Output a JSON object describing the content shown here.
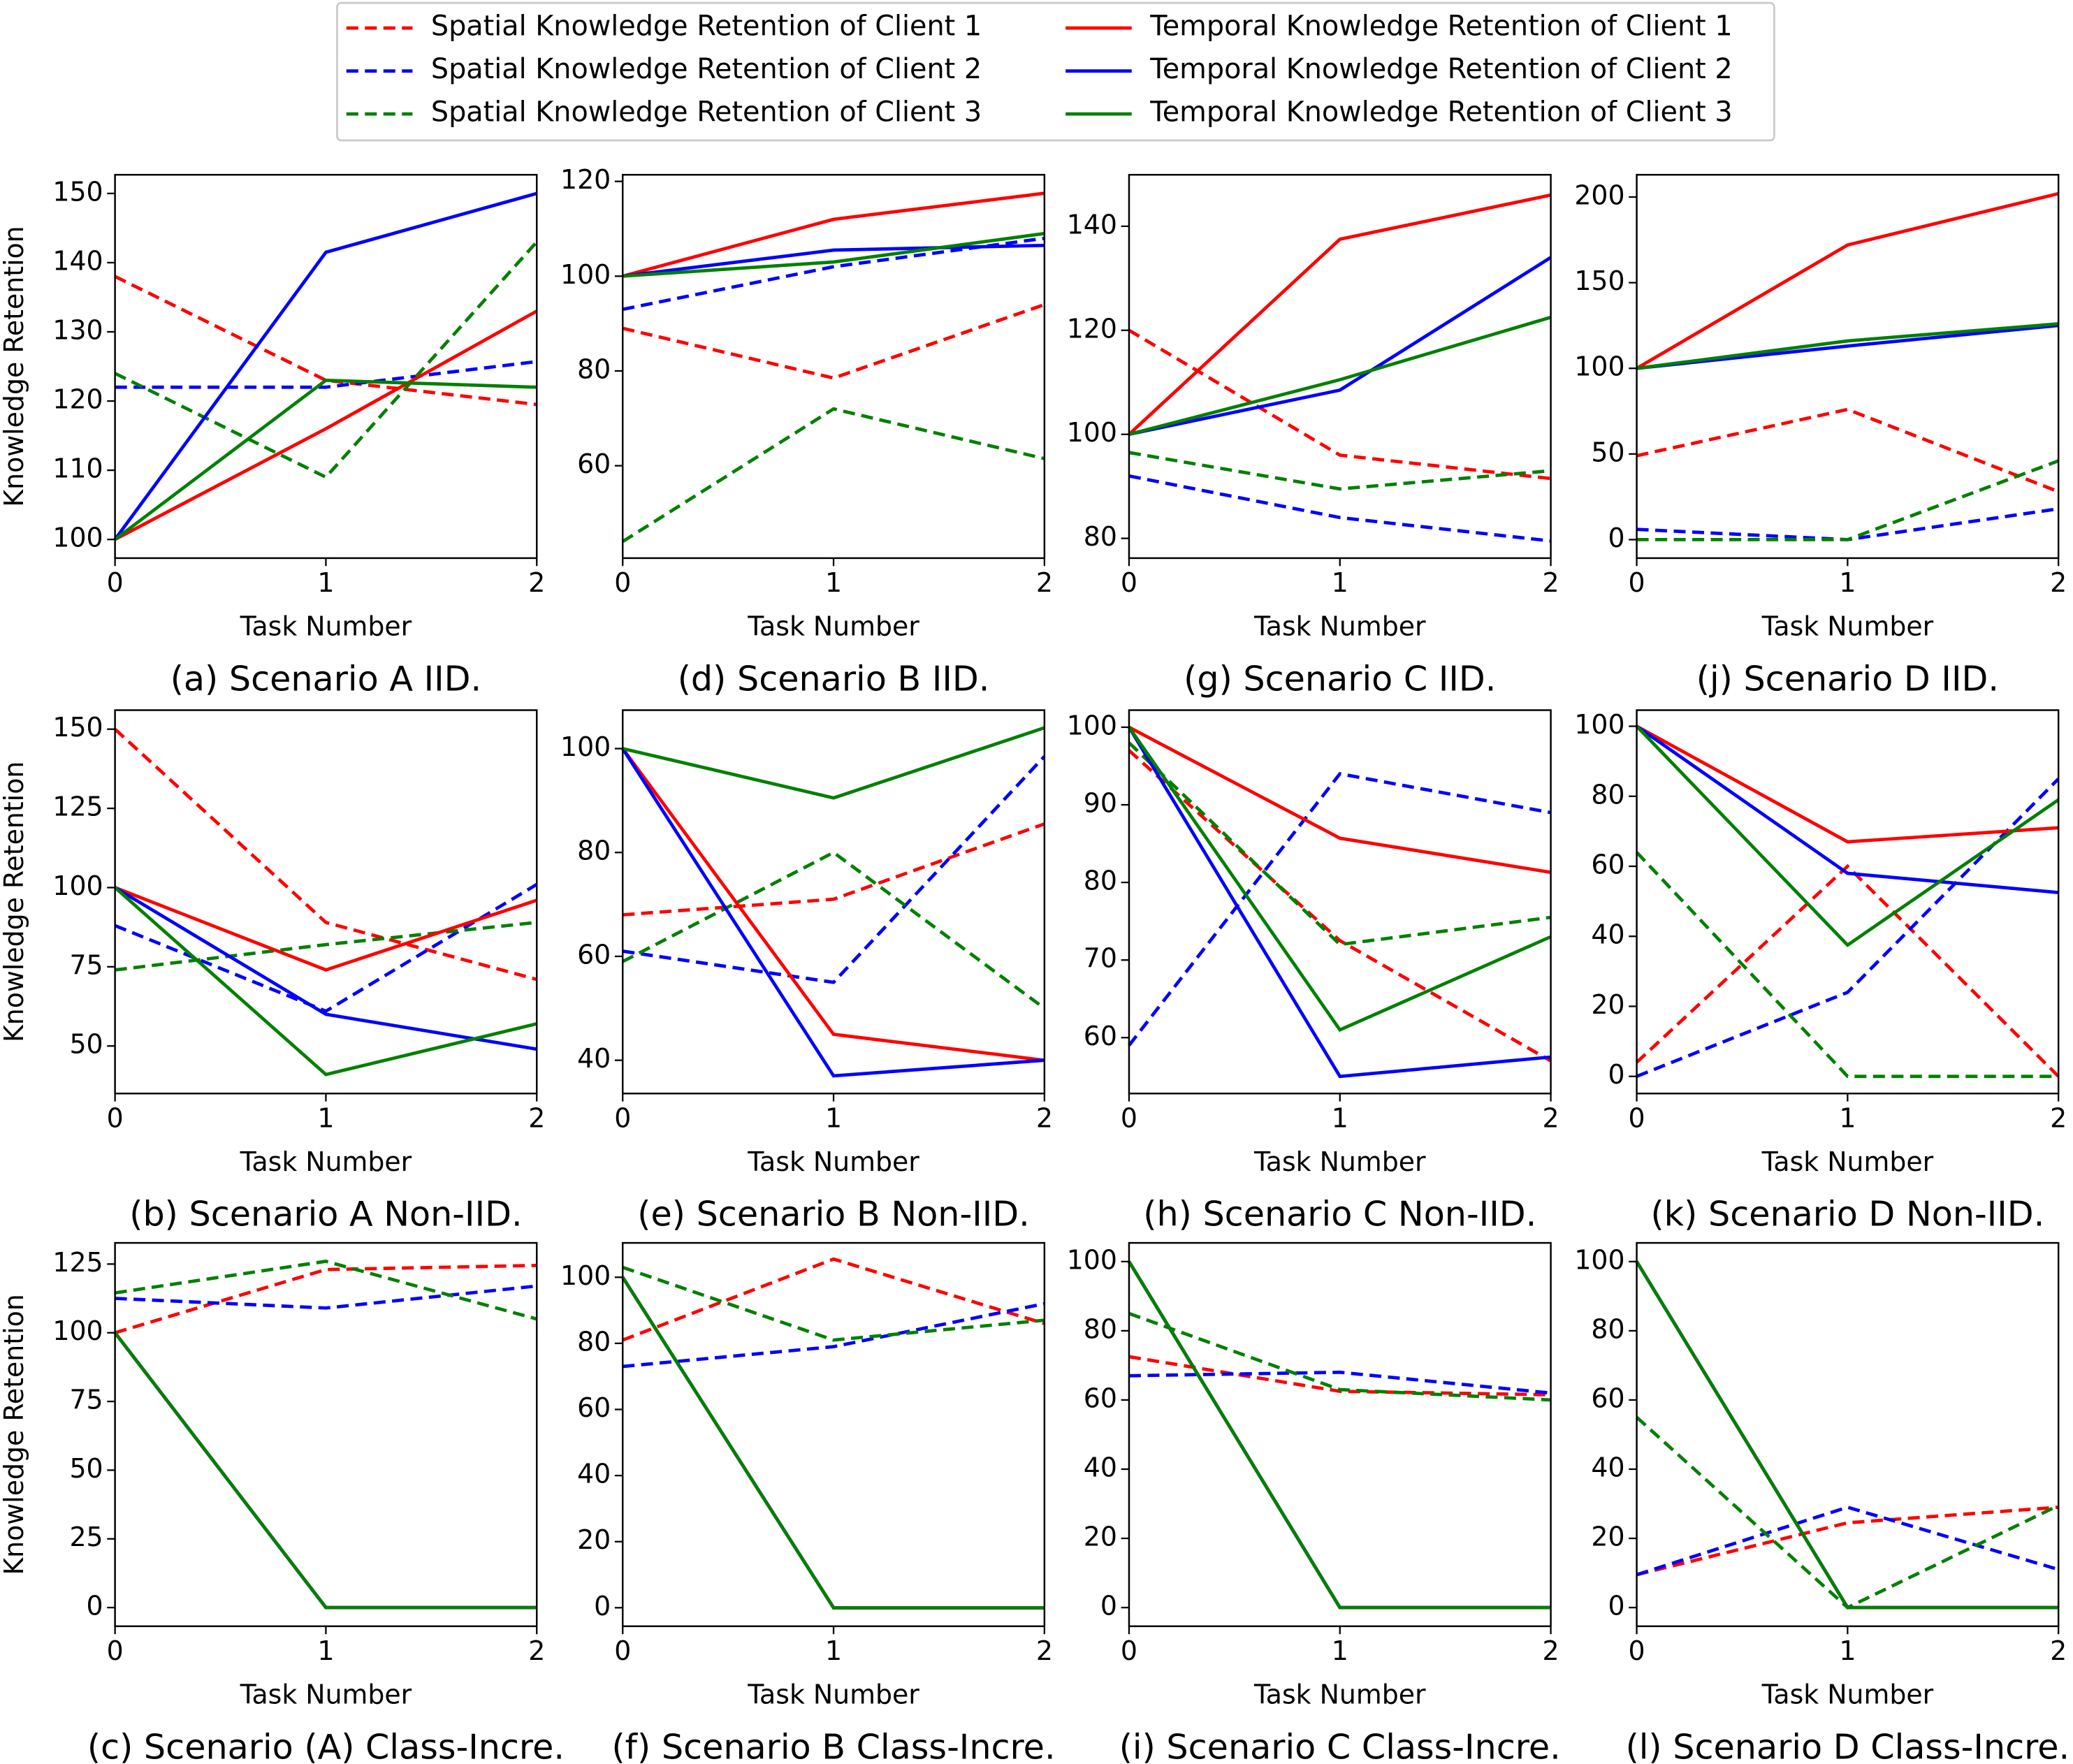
{
  "legend": {
    "entries": [
      {
        "name": "Spatial Knowledge Retention of Client 1",
        "color": "#ff0000",
        "linestyle": "dashed"
      },
      {
        "name": "Spatial Knowledge Retention of Client 2",
        "color": "#0000ff",
        "linestyle": "dashed"
      },
      {
        "name": "Spatial Knowledge Retention of Client 3",
        "color": "#008000",
        "linestyle": "dashed"
      },
      {
        "name": "Temporal Knowledge Retention of Client 1",
        "color": "#ff0000",
        "linestyle": "solid"
      },
      {
        "name": "Temporal Knowledge Retention of Client 2",
        "color": "#0000ff",
        "linestyle": "solid"
      },
      {
        "name": "Temporal Knowledge Retention of Client 3",
        "color": "#008000",
        "linestyle": "solid"
      }
    ]
  },
  "chart_data": [
    {
      "type": "line",
      "title": "(a) Scenario A IID.",
      "xlabel": "Task Number",
      "ylabel": "Knowledge Retention",
      "x": [
        0,
        1,
        2
      ],
      "xlim": [
        0,
        2
      ],
      "xticks": [
        0,
        1,
        2
      ],
      "ylim": [
        97.3,
        152.7
      ],
      "yticks": [
        100,
        110,
        120,
        130,
        140,
        150
      ],
      "series": [
        {
          "values": [
            138,
            123,
            119.5
          ]
        },
        {
          "values": [
            122,
            122,
            125.7
          ]
        },
        {
          "values": [
            124,
            109,
            143
          ]
        },
        {
          "values": [
            100,
            116,
            133
          ]
        },
        {
          "values": [
            100,
            141.5,
            150
          ]
        },
        {
          "values": [
            100,
            123,
            122
          ]
        }
      ]
    },
    {
      "type": "line",
      "title": "(b) Scenario A Non-IID.",
      "xlabel": "Task Number",
      "ylabel": "Knowledge Retention",
      "x": [
        0,
        1,
        2
      ],
      "xlim": [
        0,
        2
      ],
      "xticks": [
        0,
        1,
        2
      ],
      "ylim": [
        35,
        156
      ],
      "yticks": [
        50,
        75,
        100,
        125,
        150
      ],
      "series": [
        {
          "values": [
            150,
            89,
            71
          ]
        },
        {
          "values": [
            88,
            61,
            101
          ]
        },
        {
          "values": [
            74,
            82,
            89
          ]
        },
        {
          "values": [
            100,
            74,
            96
          ]
        },
        {
          "values": [
            100,
            60,
            49
          ]
        },
        {
          "values": [
            100,
            41,
            57
          ]
        }
      ]
    },
    {
      "type": "line",
      "title": "(c) Scenario (A) Class-Incre.",
      "xlabel": "Task Number",
      "ylabel": "Knowledge Retention",
      "x": [
        0,
        1,
        2
      ],
      "xlim": [
        0,
        2
      ],
      "xticks": [
        0,
        1,
        2
      ],
      "ylim": [
        -6.8,
        132.7
      ],
      "yticks": [
        0,
        25,
        50,
        75,
        100,
        125
      ],
      "series": [
        {
          "values": [
            100,
            123,
            124.5
          ]
        },
        {
          "values": [
            112.5,
            109,
            117
          ]
        },
        {
          "values": [
            114.5,
            126,
            105
          ]
        },
        {
          "values": [
            100,
            0,
            0
          ]
        },
        {
          "values": [
            100,
            0,
            0
          ]
        },
        {
          "values": [
            100,
            0,
            0
          ]
        }
      ]
    },
    {
      "type": "line",
      "title": "(d) Scenario B IID.",
      "xlabel": "Task Number",
      "x": [
        0,
        1,
        2
      ],
      "xlim": [
        0,
        2
      ],
      "xticks": [
        0,
        1,
        2
      ],
      "ylim": [
        40.5,
        121.4
      ],
      "yticks": [
        60,
        80,
        100,
        120
      ],
      "series": [
        {
          "values": [
            89,
            78.5,
            94
          ]
        },
        {
          "values": [
            93,
            102,
            108
          ]
        },
        {
          "values": [
            44,
            72,
            61.5
          ]
        },
        {
          "values": [
            100,
            112,
            117.5
          ]
        },
        {
          "values": [
            100,
            105.5,
            106.5
          ]
        },
        {
          "values": [
            100,
            103,
            109
          ]
        }
      ]
    },
    {
      "type": "line",
      "title": "(e) Scenario B Non-IID.",
      "xlabel": "Task Number",
      "x": [
        0,
        1,
        2
      ],
      "xlim": [
        0,
        2
      ],
      "xticks": [
        0,
        1,
        2
      ],
      "ylim": [
        33.6,
        107.4
      ],
      "yticks": [
        40,
        60,
        80,
        100
      ],
      "series": [
        {
          "values": [
            68,
            71,
            85.5
          ]
        },
        {
          "values": [
            61,
            55,
            98.5
          ]
        },
        {
          "values": [
            59,
            80,
            50
          ]
        },
        {
          "values": [
            100,
            45,
            40
          ]
        },
        {
          "values": [
            100,
            37,
            40
          ]
        },
        {
          "values": [
            100,
            90.5,
            104
          ]
        }
      ]
    },
    {
      "type": "line",
      "title": "(f) Scenario B Class-Incre.",
      "xlabel": "Task Number",
      "x": [
        0,
        1,
        2
      ],
      "xlim": [
        0,
        2
      ],
      "xticks": [
        0,
        1,
        2
      ],
      "ylim": [
        -5.6,
        110.4
      ],
      "yticks": [
        0,
        20,
        40,
        60,
        80,
        100
      ],
      "series": [
        {
          "values": [
            81,
            105.5,
            86
          ]
        },
        {
          "values": [
            73,
            79,
            92
          ]
        },
        {
          "values": [
            103,
            81,
            87
          ]
        },
        {
          "values": [
            100,
            0,
            0
          ]
        },
        {
          "values": [
            100,
            0,
            0
          ]
        },
        {
          "values": [
            100,
            0,
            0
          ]
        }
      ]
    },
    {
      "type": "line",
      "title": "(g) Scenario C IID.",
      "xlabel": "Task Number",
      "x": [
        0,
        1,
        2
      ],
      "xlim": [
        0,
        2
      ],
      "xticks": [
        0,
        1,
        2
      ],
      "ylim": [
        76.2,
        149.9
      ],
      "yticks": [
        80,
        100,
        120,
        140
      ],
      "series": [
        {
          "values": [
            120,
            96,
            91.5
          ]
        },
        {
          "values": [
            92,
            84,
            79.5
          ]
        },
        {
          "values": [
            96.5,
            89.5,
            93
          ]
        },
        {
          "values": [
            100,
            137.5,
            146
          ]
        },
        {
          "values": [
            100,
            108.5,
            134
          ]
        },
        {
          "values": [
            100,
            110.5,
            122.5
          ]
        }
      ]
    },
    {
      "type": "line",
      "title": "(h) Scenario C Non-IID.",
      "xlabel": "Task Number",
      "x": [
        0,
        1,
        2
      ],
      "xlim": [
        0,
        2
      ],
      "xticks": [
        0,
        1,
        2
      ],
      "ylim": [
        52.8,
        102.2
      ],
      "yticks": [
        60,
        70,
        80,
        90,
        100
      ],
      "series": [
        {
          "values": [
            97,
            72.5,
            57
          ]
        },
        {
          "values": [
            59,
            94,
            89
          ]
        },
        {
          "values": [
            98,
            72,
            75.5
          ]
        },
        {
          "values": [
            100,
            85.7,
            81.3
          ]
        },
        {
          "values": [
            100,
            55,
            57.5
          ]
        },
        {
          "values": [
            100,
            61,
            73
          ]
        }
      ]
    },
    {
      "type": "line",
      "title": "(i) Scenario C Class-Incre.",
      "xlabel": "Task Number",
      "x": [
        0,
        1,
        2
      ],
      "xlim": [
        0,
        2
      ],
      "xticks": [
        0,
        1,
        2
      ],
      "ylim": [
        -5.4,
        105.4
      ],
      "yticks": [
        0,
        20,
        40,
        60,
        80,
        100
      ],
      "series": [
        {
          "values": [
            72.5,
            62.5,
            61.5
          ]
        },
        {
          "values": [
            67,
            68,
            62
          ]
        },
        {
          "values": [
            85,
            63,
            60
          ]
        },
        {
          "values": [
            100,
            0,
            0
          ]
        },
        {
          "values": [
            100,
            0,
            0
          ]
        },
        {
          "values": [
            100,
            0,
            0
          ]
        }
      ]
    },
    {
      "type": "line",
      "title": "(j) Scenario D IID.",
      "xlabel": "Task Number",
      "x": [
        0,
        1,
        2
      ],
      "xlim": [
        0,
        2
      ],
      "xticks": [
        0,
        1,
        2
      ],
      "ylim": [
        -10.8,
        213
      ],
      "yticks": [
        0,
        50,
        100,
        150,
        200
      ],
      "series": [
        {
          "values": [
            49,
            76,
            28
          ]
        },
        {
          "values": [
            6,
            0,
            18
          ]
        },
        {
          "values": [
            0,
            0,
            46
          ]
        },
        {
          "values": [
            100,
            172,
            202
          ]
        },
        {
          "values": [
            100,
            113,
            125
          ]
        },
        {
          "values": [
            100,
            116,
            126
          ]
        }
      ]
    },
    {
      "type": "line",
      "title": "(k) Scenario D Non-IID.",
      "xlabel": "Task Number",
      "x": [
        0,
        1,
        2
      ],
      "xlim": [
        0,
        2
      ],
      "xticks": [
        0,
        1,
        2
      ],
      "ylim": [
        -4.9,
        104.6
      ],
      "yticks": [
        0,
        20,
        40,
        60,
        80,
        100
      ],
      "series": [
        {
          "values": [
            4,
            60,
            0
          ]
        },
        {
          "values": [
            0,
            24,
            85
          ]
        },
        {
          "values": [
            64,
            0,
            0
          ]
        },
        {
          "values": [
            100,
            67,
            71
          ]
        },
        {
          "values": [
            100,
            58,
            52.5
          ]
        },
        {
          "values": [
            100,
            37.5,
            79
          ]
        }
      ]
    },
    {
      "type": "line",
      "title": "(l) Scenario D Class-Incre.",
      "xlabel": "Task Number",
      "x": [
        0,
        1,
        2
      ],
      "xlim": [
        0,
        2
      ],
      "xticks": [
        0,
        1,
        2
      ],
      "ylim": [
        -5.4,
        105.4
      ],
      "yticks": [
        0,
        20,
        40,
        60,
        80,
        100
      ],
      "series": [
        {
          "values": [
            9.5,
            24.5,
            29
          ]
        },
        {
          "values": [
            9.5,
            29,
            11
          ]
        },
        {
          "values": [
            55,
            0,
            29.5
          ]
        },
        {
          "values": [
            100,
            0,
            0
          ]
        },
        {
          "values": [
            100,
            0,
            0
          ]
        },
        {
          "values": [
            100,
            0,
            0
          ]
        }
      ]
    }
  ]
}
